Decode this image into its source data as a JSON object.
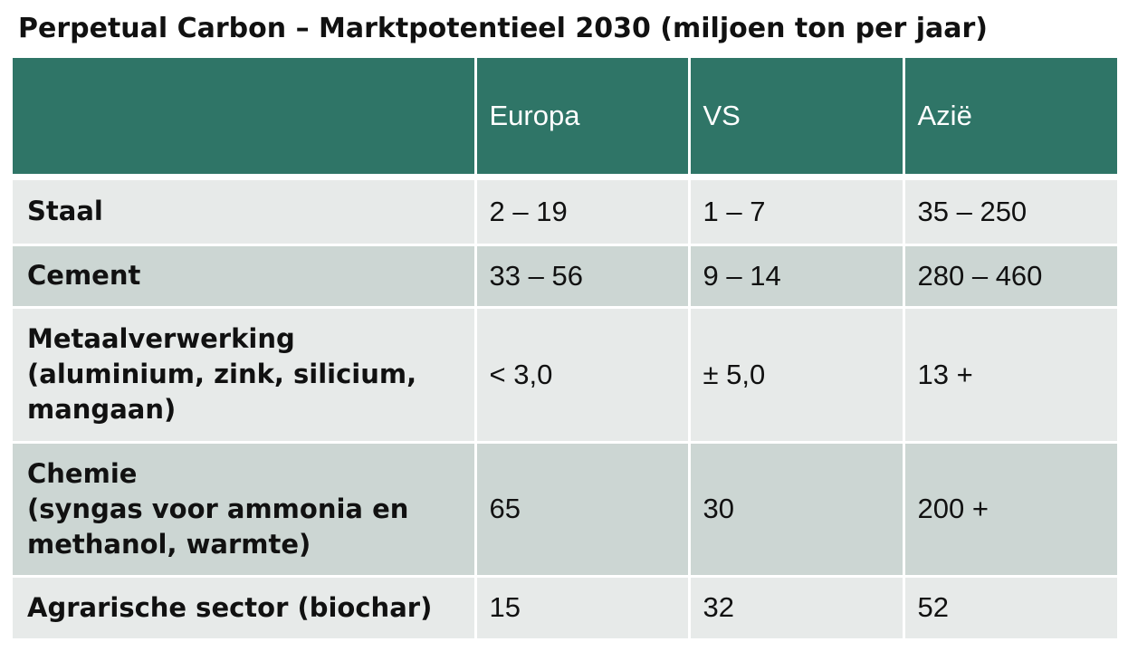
{
  "title": "Perpetual Carbon – Marktpotentieel 2030 (miljoen ton per jaar)",
  "table": {
    "columns": [
      "",
      "Europa",
      "VS",
      "Azië"
    ],
    "rows": [
      {
        "sector": "Staal",
        "values": [
          "2 – 19",
          "1 – 7",
          "35 – 250"
        ]
      },
      {
        "sector": "Cement",
        "values": [
          "33 – 56",
          "9 – 14",
          "280 – 460"
        ]
      },
      {
        "sector": "Metaalverwerking\n(aluminium, zink, silicium,\nmangaan)",
        "values": [
          "< 3,0",
          "± 5,0",
          "13 +"
        ]
      },
      {
        "sector": "Chemie\n(syngas voor ammonia en\nmethanol, warmte)",
        "values": [
          "65",
          "30",
          "200 +"
        ]
      },
      {
        "sector": "Agrarische sector (biochar)",
        "values": [
          "15",
          "32",
          "52"
        ]
      }
    ]
  },
  "colors": {
    "header_bg": "#2f7567",
    "row_light": "#e7eae9",
    "row_dark": "#ccd6d3",
    "text": "#111111",
    "header_text": "#ffffff"
  }
}
